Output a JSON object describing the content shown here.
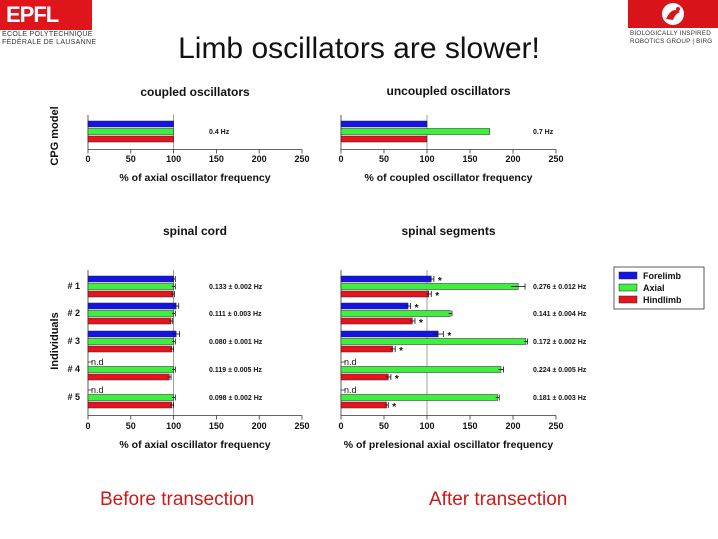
{
  "slide": {
    "title": "Limb oscillators are slower!",
    "logo_left": {
      "mark": "EPFL",
      "line1": "ÉCOLE POLYTECHNIQUE",
      "line2": "FÉDÉRALE DE LAUSANNE"
    },
    "logo_right": {
      "line1": "BIOLOGICALLY INSPIRED",
      "line2": "ROBOTICS GROUP | BIRG"
    },
    "footer_left": "Before transection",
    "footer_right": "After transection"
  },
  "colors": {
    "forelimb": "#1414e6",
    "axial": "#3ef03e",
    "hindlimb": "#e6141e",
    "title_red": "#d01818"
  },
  "legend": [
    {
      "label": "Forelimb",
      "color": "#1414e6"
    },
    {
      "label": "Axial",
      "color": "#3ef03e"
    },
    {
      "label": "Hindlimb",
      "color": "#e6141e"
    }
  ],
  "group_labels": {
    "top_ylabel": "CPG model",
    "bottom_ylabel": "Individuals"
  },
  "chart_data": [
    {
      "type": "bar",
      "title": "coupled oscillators",
      "xlabel": "% of axial oscillator frequency",
      "xlim": [
        0,
        250
      ],
      "ticks": [
        0,
        50,
        100,
        150,
        200,
        250
      ],
      "rows": [
        {
          "label": "",
          "freq": "0.4 Hz",
          "bars": [
            {
              "series": "Forelimb",
              "value": 100
            },
            {
              "series": "Axial",
              "value": 100
            },
            {
              "series": "Hindlimb",
              "value": 100
            }
          ]
        }
      ]
    },
    {
      "type": "bar",
      "title": "uncoupled oscillators",
      "xlabel": "% of coupled oscillator frequency",
      "xlim": [
        0,
        250
      ],
      "ticks": [
        0,
        50,
        100,
        150,
        200,
        250
      ],
      "rows": [
        {
          "label": "",
          "freq": "0.7 Hz",
          "bars": [
            {
              "series": "Forelimb",
              "value": 100
            },
            {
              "series": "Axial",
              "value": 173
            },
            {
              "series": "Hindlimb",
              "value": 100
            }
          ]
        }
      ]
    },
    {
      "type": "bar",
      "title": "spinal cord",
      "xlabel": "% of axial oscillator frequency",
      "xlim": [
        0,
        250
      ],
      "ticks": [
        0,
        50,
        100,
        150,
        200,
        250
      ],
      "rows": [
        {
          "label": "# 1",
          "freq": "0.133 ± 0.002 Hz",
          "bars": [
            {
              "series": "Forelimb",
              "value": 100,
              "err": 2
            },
            {
              "series": "Axial",
              "value": 100,
              "err": 2
            },
            {
              "series": "Hindlimb",
              "value": 99,
              "err": 2
            }
          ]
        },
        {
          "label": "# 2",
          "freq": "0.111 ± 0.003 Hz",
          "bars": [
            {
              "series": "Forelimb",
              "value": 103,
              "err": 3
            },
            {
              "series": "Axial",
              "value": 100,
              "err": 2
            },
            {
              "series": "Hindlimb",
              "value": 97,
              "err": 2
            }
          ]
        },
        {
          "label": "# 3",
          "freq": "0.080 ± 0.001 Hz",
          "bars": [
            {
              "series": "Forelimb",
              "value": 103,
              "err": 4
            },
            {
              "series": "Axial",
              "value": 100,
              "err": 2
            },
            {
              "series": "Hindlimb",
              "value": 98,
              "err": 2
            }
          ]
        },
        {
          "label": "# 4",
          "freq": "0.119 ± 0.005 Hz",
          "bars": [
            {
              "series": "Forelimb",
              "value": null,
              "note": "n.d"
            },
            {
              "series": "Axial",
              "value": 100,
              "err": 2
            },
            {
              "series": "Hindlimb",
              "value": 95,
              "err": 2
            }
          ]
        },
        {
          "label": "# 5",
          "freq": "0.098 ± 0.002 Hz",
          "bars": [
            {
              "series": "Forelimb",
              "value": null,
              "note": "n.d"
            },
            {
              "series": "Axial",
              "value": 100,
              "err": 2
            },
            {
              "series": "Hindlimb",
              "value": 98,
              "err": 2
            }
          ]
        }
      ]
    },
    {
      "type": "bar",
      "title": "spinal segments",
      "xlabel": "% of prelesional axial oscillator frequency",
      "xlim": [
        0,
        250
      ],
      "ticks": [
        0,
        50,
        100,
        150,
        200,
        250
      ],
      "rows": [
        {
          "label": "",
          "freq": "0.276 ± 0.012 Hz",
          "bars": [
            {
              "series": "Forelimb",
              "value": 105,
              "err": 3,
              "star": "*"
            },
            {
              "series": "Axial",
              "value": 206,
              "err": 8
            },
            {
              "series": "Hindlimb",
              "value": 102,
              "err": 3,
              "star": "*"
            }
          ]
        },
        {
          "label": "",
          "freq": "0.141 ± 0.004 Hz",
          "bars": [
            {
              "series": "Forelimb",
              "value": 78,
              "err": 3,
              "star": "*"
            },
            {
              "series": "Axial",
              "value": 127,
              "err": 2
            },
            {
              "series": "Hindlimb",
              "value": 83,
              "err": 3,
              "star": "*"
            }
          ]
        },
        {
          "label": "",
          "freq": "0.172 ± 0.002 Hz",
          "bars": [
            {
              "series": "Forelimb",
              "value": 113,
              "err": 6,
              "star": "*"
            },
            {
              "series": "Axial",
              "value": 215,
              "err": 2
            },
            {
              "series": "Hindlimb",
              "value": 60,
              "err": 3,
              "star": "*"
            }
          ]
        },
        {
          "label": "",
          "freq": "0.224 ± 0.005 Hz",
          "bars": [
            {
              "series": "Forelimb",
              "value": null,
              "note": "n.d"
            },
            {
              "series": "Axial",
              "value": 186,
              "err": 3
            },
            {
              "series": "Hindlimb",
              "value": 55,
              "err": 3,
              "star": "*"
            }
          ]
        },
        {
          "label": "",
          "freq": "0.181 ± 0.003 Hz",
          "bars": [
            {
              "series": "Forelimb",
              "value": null,
              "note": "n.d"
            },
            {
              "series": "Axial",
              "value": 182,
              "err": 2
            },
            {
              "series": "Hindlimb",
              "value": 53,
              "err": 2,
              "star": "*"
            }
          ]
        }
      ]
    }
  ]
}
